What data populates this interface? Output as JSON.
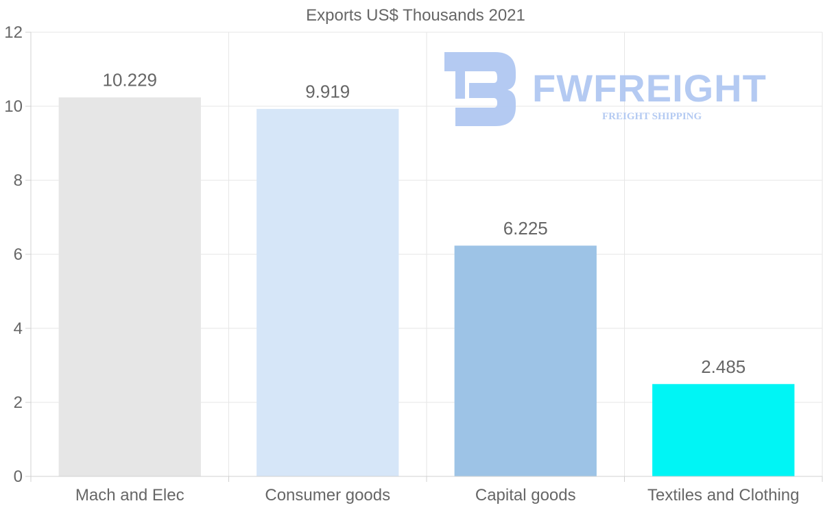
{
  "watermark": {
    "name": "FWFREIGHT",
    "tagline": "FREIGHT SHIPPING",
    "color": "#b0c8f2"
  },
  "chart_data": {
    "type": "bar",
    "title": "Exports US$ Thousands 2021",
    "categories": [
      "Mach and Elec",
      "Consumer goods",
      "Capital goods",
      "Textiles and Clothing"
    ],
    "values": [
      10.229,
      9.919,
      6.225,
      2.485
    ],
    "value_labels": [
      "10.229",
      "9.919",
      "6.225",
      "2.485"
    ],
    "colors": [
      "#e6e6e6",
      "#d6e6f8",
      "#9dc3e6",
      "#00f5f5"
    ],
    "yticks": [
      0,
      2,
      4,
      6,
      8,
      10,
      12
    ],
    "ylim": [
      0,
      12
    ],
    "xlabel": "",
    "ylabel": "",
    "grid": true
  }
}
